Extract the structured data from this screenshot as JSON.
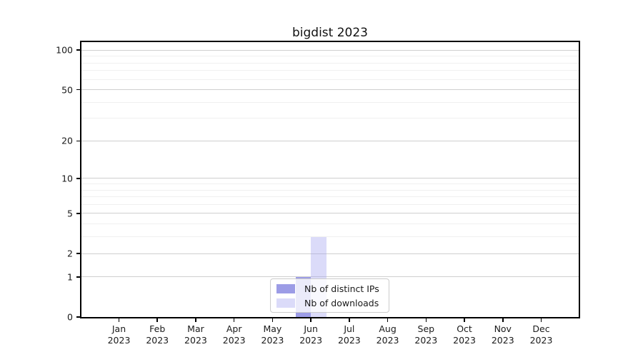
{
  "chart_data": {
    "type": "bar",
    "title": "bigdist 2023",
    "categories": [
      "Jan",
      "Feb",
      "Mar",
      "Apr",
      "May",
      "Jun",
      "Jul",
      "Aug",
      "Sep",
      "Oct",
      "Nov",
      "Dec"
    ],
    "x_year_label": "2023",
    "series": [
      {
        "name": "Nb of distinct IPs",
        "color": "rgba(95,95,215,0.62)",
        "values": [
          0,
          0,
          0,
          0,
          0,
          1,
          0,
          0,
          0,
          0,
          0,
          0
        ]
      },
      {
        "name": "Nb of downloads",
        "color": "rgba(160,160,240,0.38)",
        "values": [
          0,
          0,
          0,
          0,
          0,
          3,
          0,
          0,
          0,
          0,
          0,
          0
        ]
      }
    ],
    "yscale": "log1p",
    "yticks": [
      0,
      1,
      2,
      5,
      10,
      20,
      50,
      100
    ],
    "yticks_minor": [
      3,
      4,
      6,
      7,
      8,
      9,
      30,
      40,
      60,
      70,
      80,
      90
    ],
    "ylim": [
      0,
      115
    ],
    "xlabel": "",
    "ylabel": "",
    "grid": "both",
    "legend": {
      "location": "lower-center",
      "entries": [
        "Nb of distinct IPs",
        "Nb of downloads"
      ]
    }
  },
  "colors": {
    "grid_major": "#cfcfcf",
    "grid_minor": "#f0f0f0",
    "spine": "#000000",
    "text": "#1a1a1a",
    "legend_border": "#cccccc",
    "legend_bg": "rgba(255,255,255,0.8)"
  }
}
